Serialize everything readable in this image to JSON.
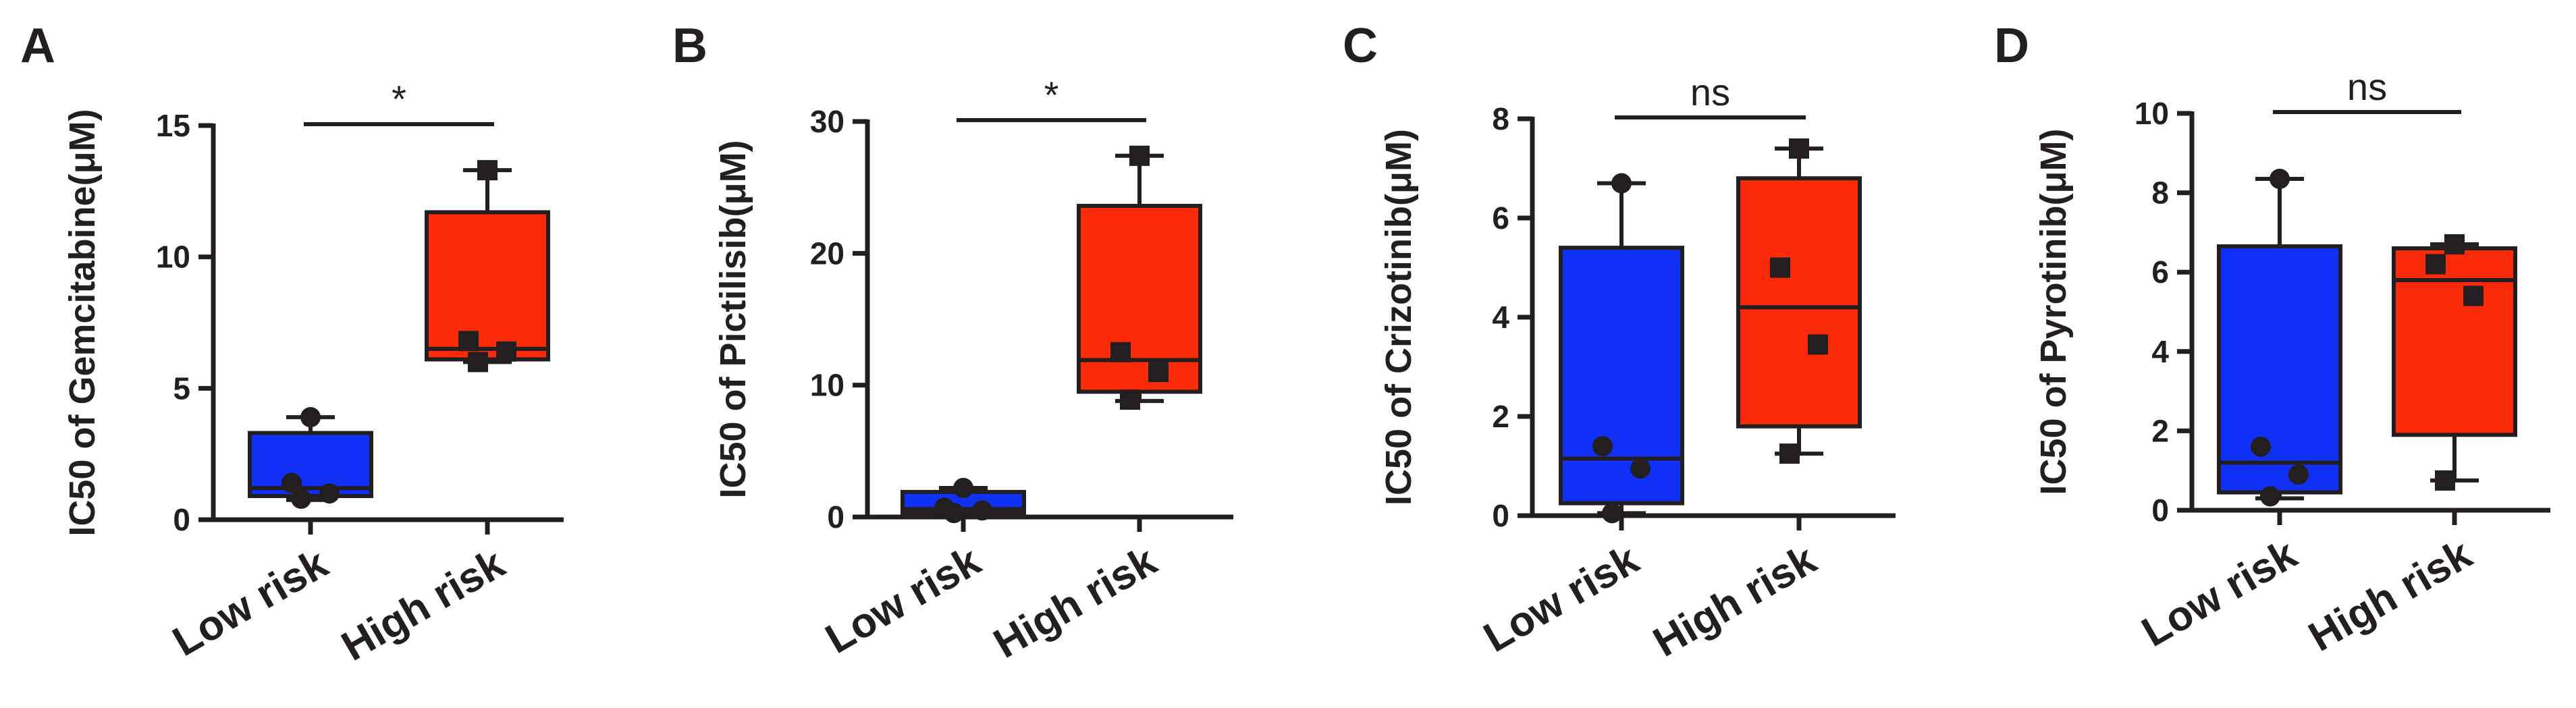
{
  "colors": {
    "low": "#1031f5",
    "high": "#fb2a08",
    "ink": "#231f20"
  },
  "chart_data": [
    {
      "type": "box",
      "panel": "A",
      "ylabel": "IC50 of Gemcitabine(μM)",
      "ylim": [
        0,
        15
      ],
      "yticks": [
        0,
        5,
        10,
        15
      ],
      "categories": [
        "Low risk",
        "High risk"
      ],
      "significance": "*",
      "boxes": [
        {
          "name": "Low risk",
          "color": "low",
          "min": 0.75,
          "q1": 0.9,
          "median": 1.2,
          "q3": 3.3,
          "max": 3.9,
          "points": [
            {
              "y": 3.9,
              "marker": "circle"
            },
            {
              "y": 1.4,
              "marker": "circle"
            },
            {
              "y": 1.0,
              "marker": "circle"
            },
            {
              "y": 0.8,
              "marker": "circle"
            }
          ]
        },
        {
          "name": "High risk",
          "color": "high",
          "min": 6.0,
          "q1": 6.1,
          "median": 6.5,
          "q3": 11.7,
          "max": 13.3,
          "points": [
            {
              "y": 13.3,
              "marker": "square"
            },
            {
              "y": 6.8,
              "marker": "square"
            },
            {
              "y": 6.4,
              "marker": "square"
            },
            {
              "y": 6.0,
              "marker": "square"
            }
          ]
        }
      ]
    },
    {
      "type": "box",
      "panel": "B",
      "ylabel": "IC50 of Pictilisib(μM)",
      "ylim": [
        0,
        30
      ],
      "yticks": [
        0,
        10,
        20,
        30
      ],
      "categories": [
        "Low risk",
        "High risk"
      ],
      "significance": "*",
      "boxes": [
        {
          "name": "Low risk",
          "color": "low",
          "min": 0.2,
          "q1": 0.3,
          "median": 0.6,
          "q3": 1.9,
          "max": 2.2,
          "points": [
            {
              "y": 2.2,
              "marker": "circle"
            },
            {
              "y": 0.7,
              "marker": "circle"
            },
            {
              "y": 0.5,
              "marker": "circle"
            },
            {
              "y": 0.3,
              "marker": "circle"
            }
          ]
        },
        {
          "name": "High risk",
          "color": "high",
          "min": 8.8,
          "q1": 9.5,
          "median": 11.9,
          "q3": 23.6,
          "max": 27.4,
          "points": [
            {
              "y": 27.4,
              "marker": "square"
            },
            {
              "y": 12.5,
              "marker": "square"
            },
            {
              "y": 11.0,
              "marker": "square"
            },
            {
              "y": 8.9,
              "marker": "square"
            }
          ]
        }
      ]
    },
    {
      "type": "box",
      "panel": "C",
      "ylabel": "IC50 of Crizotinib(μM)",
      "ylim": [
        0,
        8
      ],
      "yticks": [
        0,
        2,
        4,
        6,
        8
      ],
      "categories": [
        "Low risk",
        "High risk"
      ],
      "significance": "ns",
      "boxes": [
        {
          "name": "Low risk",
          "color": "low",
          "min": 0.05,
          "q1": 0.25,
          "median": 1.15,
          "q3": 5.4,
          "max": 6.7,
          "points": [
            {
              "y": 6.7,
              "marker": "circle"
            },
            {
              "y": 1.4,
              "marker": "circle"
            },
            {
              "y": 0.95,
              "marker": "circle"
            },
            {
              "y": 0.05,
              "marker": "circle"
            }
          ]
        },
        {
          "name": "High risk",
          "color": "high",
          "min": 1.25,
          "q1": 1.8,
          "median": 4.2,
          "q3": 6.8,
          "max": 7.4,
          "points": [
            {
              "y": 7.4,
              "marker": "square"
            },
            {
              "y": 5.0,
              "marker": "square"
            },
            {
              "y": 3.45,
              "marker": "square"
            },
            {
              "y": 1.25,
              "marker": "square"
            }
          ]
        }
      ]
    },
    {
      "type": "box",
      "panel": "D",
      "ylabel": "IC50 of Pyrotinib(μM)",
      "ylim": [
        0,
        10
      ],
      "yticks": [
        0,
        2,
        4,
        6,
        8,
        10
      ],
      "categories": [
        "Low risk",
        "High risk"
      ],
      "significance": "ns",
      "boxes": [
        {
          "name": "Low risk",
          "color": "low",
          "min": 0.3,
          "q1": 0.45,
          "median": 1.2,
          "q3": 6.65,
          "max": 8.35,
          "points": [
            {
              "y": 8.35,
              "marker": "circle"
            },
            {
              "y": 1.6,
              "marker": "circle"
            },
            {
              "y": 0.9,
              "marker": "circle"
            },
            {
              "y": 0.35,
              "marker": "circle"
            }
          ]
        },
        {
          "name": "High risk",
          "color": "high",
          "min": 0.75,
          "q1": 1.9,
          "median": 5.8,
          "q3": 6.6,
          "max": 6.7,
          "points": [
            {
              "y": 6.7,
              "marker": "square"
            },
            {
              "y": 6.2,
              "marker": "square"
            },
            {
              "y": 5.4,
              "marker": "square"
            },
            {
              "y": 0.75,
              "marker": "square"
            }
          ]
        }
      ]
    }
  ]
}
